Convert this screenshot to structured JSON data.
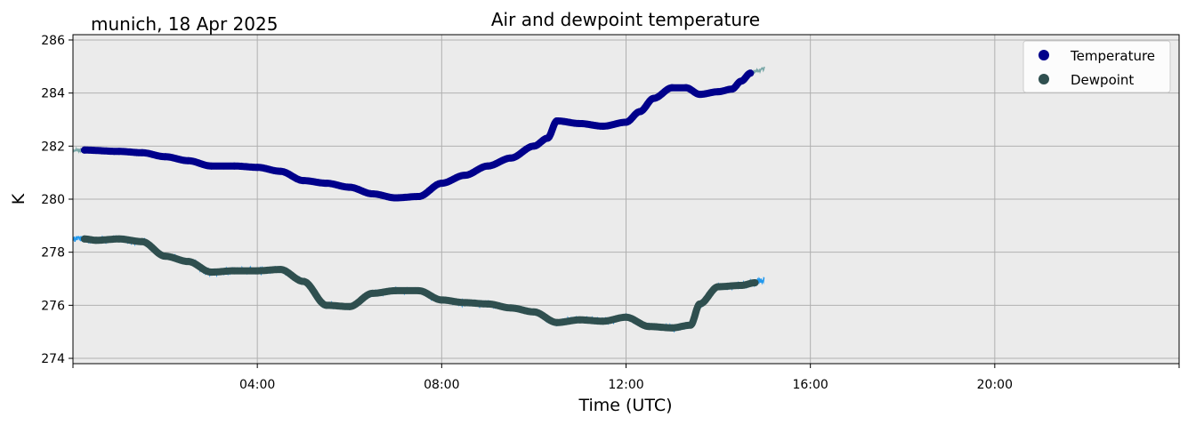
{
  "chart_data": {
    "type": "line",
    "title": "Air and dewpoint temperature",
    "subtitle": "munich, 18 Apr 2025",
    "xlabel": "Time (UTC)",
    "ylabel": "K",
    "xlim_hours": [
      0,
      24
    ],
    "ylim": [
      273.8,
      286.2
    ],
    "xticks": [
      {
        "hour": 4,
        "label": "04:00"
      },
      {
        "hour": 8,
        "label": "08:00"
      },
      {
        "hour": 12,
        "label": "12:00"
      },
      {
        "hour": 16,
        "label": "16:00"
      },
      {
        "hour": 20,
        "label": "20:00"
      }
    ],
    "yticks": [
      274,
      276,
      278,
      280,
      282,
      284,
      286
    ],
    "grid": true,
    "legend_position": "top-right",
    "colors": {
      "temperature": "#00008b",
      "dewpoint": "#2f4f4f",
      "temperature_raw": "#7aa8a8",
      "dewpoint_raw": "#2299ee",
      "plot_bg": "#ebebeb",
      "grid": "#b0b0b0"
    },
    "series": [
      {
        "name": "Temperature",
        "x_hours": [
          0.25,
          1.0,
          1.5,
          2.0,
          2.5,
          3.0,
          3.5,
          4.0,
          4.5,
          5.0,
          5.5,
          6.0,
          6.5,
          7.0,
          7.5,
          8.0,
          8.5,
          9.0,
          9.5,
          10.0,
          10.3,
          10.5,
          11.0,
          11.5,
          12.0,
          12.3,
          12.6,
          13.0,
          13.3,
          13.6,
          14.0,
          14.3,
          14.5,
          14.7
        ],
        "values": [
          281.85,
          281.8,
          281.75,
          281.6,
          281.45,
          281.25,
          281.25,
          281.2,
          281.05,
          280.7,
          280.6,
          280.45,
          280.2,
          280.05,
          280.1,
          280.6,
          280.9,
          281.25,
          281.55,
          282.0,
          282.3,
          282.95,
          282.85,
          282.75,
          282.9,
          283.3,
          283.8,
          284.2,
          284.2,
          283.95,
          284.05,
          284.15,
          284.45,
          284.75
        ]
      },
      {
        "name": "Dewpoint",
        "x_hours": [
          0.25,
          0.5,
          1.0,
          1.5,
          2.0,
          2.5,
          3.0,
          3.5,
          4.0,
          4.5,
          5.0,
          5.5,
          6.0,
          6.5,
          7.0,
          7.5,
          8.0,
          8.5,
          9.0,
          9.5,
          10.0,
          10.5,
          11.0,
          11.5,
          12.0,
          12.5,
          13.0,
          13.4,
          13.6,
          14.0,
          14.5,
          14.8
        ],
        "values": [
          278.5,
          278.45,
          278.5,
          278.4,
          277.85,
          277.65,
          277.25,
          277.3,
          277.3,
          277.35,
          276.9,
          276.0,
          275.95,
          276.45,
          276.55,
          276.55,
          276.2,
          276.1,
          276.05,
          275.9,
          275.75,
          275.35,
          275.45,
          275.4,
          275.55,
          275.2,
          275.15,
          275.25,
          276.05,
          276.7,
          276.75,
          276.85
        ]
      }
    ],
    "legend": [
      {
        "label": "Temperature",
        "color": "#00008b"
      },
      {
        "label": "Dewpoint",
        "color": "#2f4f4f"
      }
    ]
  }
}
